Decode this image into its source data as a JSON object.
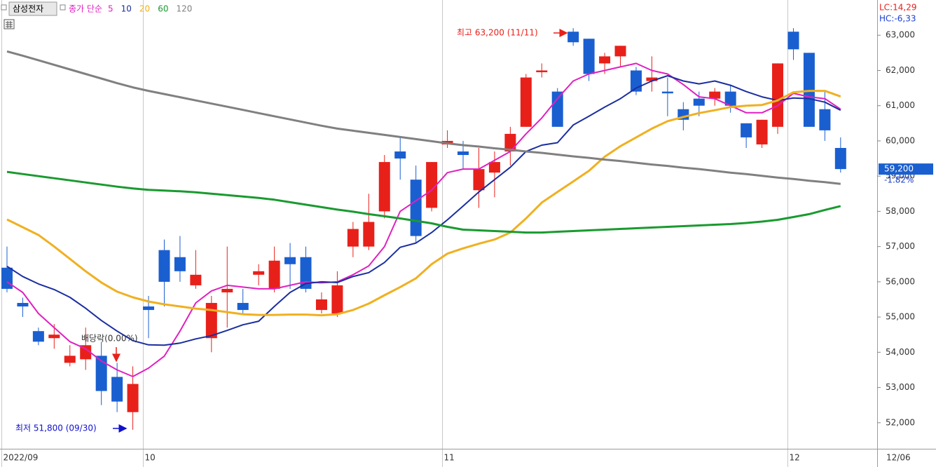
{
  "chart_data": {
    "type": "candlestick",
    "stock_name": "삼성전자",
    "legend_label": "종가 단순",
    "lc": "LC:14,29",
    "hc": "HC:-6,33",
    "up_color": "#e8201a",
    "down_color": "#1a5fd0",
    "categories": [
      "2022/09",
      null,
      null,
      null,
      null,
      null,
      null,
      null,
      null,
      "10",
      null,
      null,
      null,
      null,
      null,
      null,
      null,
      null,
      null,
      null,
      null,
      null,
      null,
      null,
      null,
      null,
      null,
      null,
      "11",
      null,
      null,
      null,
      null,
      null,
      null,
      null,
      null,
      null,
      null,
      null,
      null,
      null,
      null,
      null,
      null,
      null,
      null,
      null,
      null,
      null,
      "12",
      null,
      null,
      null
    ],
    "date_label": "12/06",
    "open": [
      56400,
      55400,
      54600,
      54400,
      53700,
      53800,
      53900,
      53300,
      52300,
      55300,
      56900,
      56700,
      55900,
      54400,
      55700,
      55400,
      56200,
      55800,
      56700,
      56700,
      55200,
      55100,
      57000,
      57000,
      58000,
      59700,
      58900,
      58100,
      59900,
      59700,
      58600,
      59100,
      59700,
      60400,
      61950,
      61400,
      63100,
      62900,
      62200,
      62400,
      62000,
      61700,
      61400,
      60900,
      61200,
      61200,
      61400,
      60500,
      59900,
      60400,
      63100,
      62500,
      60900,
      59800
    ],
    "high": [
      57000,
      55550,
      54700,
      54800,
      54200,
      54700,
      54300,
      53700,
      53600,
      55600,
      57200,
      57300,
      56900,
      55600,
      57000,
      55800,
      56500,
      57000,
      57100,
      57000,
      55700,
      56300,
      57700,
      58500,
      59600,
      60100,
      59300,
      59400,
      60300,
      60000,
      59800,
      59700,
      60400,
      61900,
      62200,
      61500,
      63200,
      62900,
      62500,
      62700,
      62100,
      62400,
      61800,
      61100,
      61400,
      61500,
      61600,
      60500,
      60600,
      62200,
      63200,
      62500,
      61400,
      60100
    ],
    "low": [
      55700,
      55000,
      54200,
      54100,
      53600,
      53500,
      52500,
      52300,
      51800,
      54400,
      55300,
      56000,
      55800,
      54000,
      54700,
      55100,
      55900,
      55700,
      55800,
      55700,
      55100,
      55000,
      56700,
      56900,
      57800,
      58900,
      57100,
      58000,
      59800,
      59200,
      58100,
      58400,
      59300,
      60400,
      61800,
      60400,
      62700,
      61700,
      61900,
      62100,
      61300,
      61400,
      60700,
      60300,
      60700,
      61000,
      60800,
      59800,
      59800,
      60200,
      62300,
      60400,
      60000,
      59100
    ],
    "close": [
      55800,
      55300,
      54300,
      54500,
      53900,
      54200,
      52900,
      52600,
      53100,
      55200,
      56000,
      56300,
      56200,
      55400,
      55800,
      55200,
      56300,
      56600,
      56500,
      55800,
      55500,
      55900,
      57500,
      57700,
      59400,
      59500,
      57300,
      59400,
      60000,
      59600,
      59200,
      59400,
      60200,
      61800,
      62000,
      60400,
      62800,
      61900,
      62400,
      62700,
      61400,
      61800,
      61350,
      60600,
      61000,
      61400,
      61000,
      60100,
      60600,
      62200,
      62600,
      60400,
      60300,
      59200
    ],
    "series": [
      {
        "name": "5",
        "color": "#e020c0",
        "values": [
          56000,
          55700,
          55100,
          54700,
          54300,
          54100,
          53750,
          53500,
          53310,
          53550,
          53890,
          54600,
          55400,
          55740,
          55900,
          55850,
          55800,
          55800,
          55900,
          56000,
          55970,
          56000,
          56200,
          56450,
          57000,
          58000,
          58300,
          58600,
          59100,
          59200,
          59200,
          59450,
          59700,
          60200,
          60650,
          61200,
          61700,
          61900,
          62000,
          62100,
          62200,
          62000,
          61900,
          61600,
          61250,
          61200,
          61000,
          60800,
          60800,
          61000,
          61350,
          61250,
          61200,
          60900
        ]
      },
      {
        "name": "10",
        "color": "#1a2ea0",
        "values": [
          56440,
          56150,
          55940,
          55780,
          55560,
          55250,
          54900,
          54600,
          54330,
          54210,
          54200,
          54260,
          54380,
          54470,
          54620,
          54780,
          54880,
          55300,
          55700,
          55950,
          56000,
          55980,
          56150,
          56260,
          56550,
          56980,
          57100,
          57400,
          57760,
          58150,
          58550,
          58900,
          59250,
          59700,
          59880,
          59950,
          60450,
          60700,
          60960,
          61200,
          61500,
          61700,
          61850,
          61700,
          61620,
          61700,
          61580,
          61400,
          61250,
          61150,
          61220,
          61200,
          61100,
          60870
        ]
      },
      {
        "name": "20",
        "color": "#f0b020",
        "values": [
          57770,
          57550,
          57330,
          57000,
          56650,
          56300,
          55980,
          55720,
          55560,
          55440,
          55360,
          55300,
          55240,
          55200,
          55140,
          55080,
          55060,
          55060,
          55070,
          55070,
          55050,
          55080,
          55200,
          55380,
          55620,
          55850,
          56100,
          56500,
          56800,
          56950,
          57080,
          57200,
          57400,
          57800,
          58250,
          58550,
          58850,
          59150,
          59550,
          59850,
          60100,
          60350,
          60560,
          60680,
          60790,
          60870,
          60960,
          61000,
          61020,
          61150,
          61380,
          61420,
          61420,
          61260
        ]
      },
      {
        "name": "60",
        "color": "#1a9a30",
        "values": [
          59120,
          59060,
          59000,
          58940,
          58880,
          58820,
          58760,
          58700,
          58650,
          58610,
          58590,
          58570,
          58540,
          58500,
          58460,
          58420,
          58380,
          58330,
          58260,
          58190,
          58120,
          58050,
          57990,
          57920,
          57860,
          57800,
          57730,
          57660,
          57560,
          57480,
          57460,
          57440,
          57420,
          57400,
          57400,
          57420,
          57440,
          57460,
          57480,
          57500,
          57520,
          57540,
          57560,
          57580,
          57600,
          57620,
          57640,
          57670,
          57710,
          57760,
          57840,
          57920,
          58040,
          58150
        ]
      },
      {
        "name": "120",
        "color": "#808080",
        "values": [
          62540,
          62420,
          62290,
          62160,
          62030,
          61900,
          61770,
          61640,
          61520,
          61420,
          61330,
          61240,
          61150,
          61060,
          60970,
          60880,
          60790,
          60700,
          60610,
          60520,
          60430,
          60350,
          60290,
          60230,
          60170,
          60110,
          60050,
          59990,
          59930,
          59880,
          59840,
          59790,
          59750,
          59700,
          59660,
          59610,
          59560,
          59520,
          59470,
          59430,
          59380,
          59330,
          59290,
          59240,
          59200,
          59150,
          59100,
          59060,
          59010,
          58960,
          58920,
          58870,
          58830,
          58780
        ]
      }
    ],
    "ylim": [
      51260,
      64000
    ],
    "yticks": [
      {
        "value": 52000,
        "label": "52,000"
      },
      {
        "value": 53000,
        "label": "53,000"
      },
      {
        "value": 54000,
        "label": "54,000"
      },
      {
        "value": 55000,
        "label": "55,000"
      },
      {
        "value": 56000,
        "label": "56,000"
      },
      {
        "value": 57000,
        "label": "57,000"
      },
      {
        "value": 58000,
        "label": "58,000"
      },
      {
        "value": 59000,
        "label": "59,000"
      },
      {
        "value": 60000,
        "label": "60,000"
      },
      {
        "value": 61000,
        "label": "61,000"
      },
      {
        "value": 62000,
        "label": "62,000"
      },
      {
        "value": 63000,
        "label": "63,000"
      }
    ],
    "current_price": {
      "value": 59200,
      "label": "59,200"
    },
    "change_label": "-1.82%",
    "annotations": [
      "최고 63,200 (11/11)",
      "최저 51,800 (09/30)",
      "배당락(0.00%)"
    ]
  }
}
